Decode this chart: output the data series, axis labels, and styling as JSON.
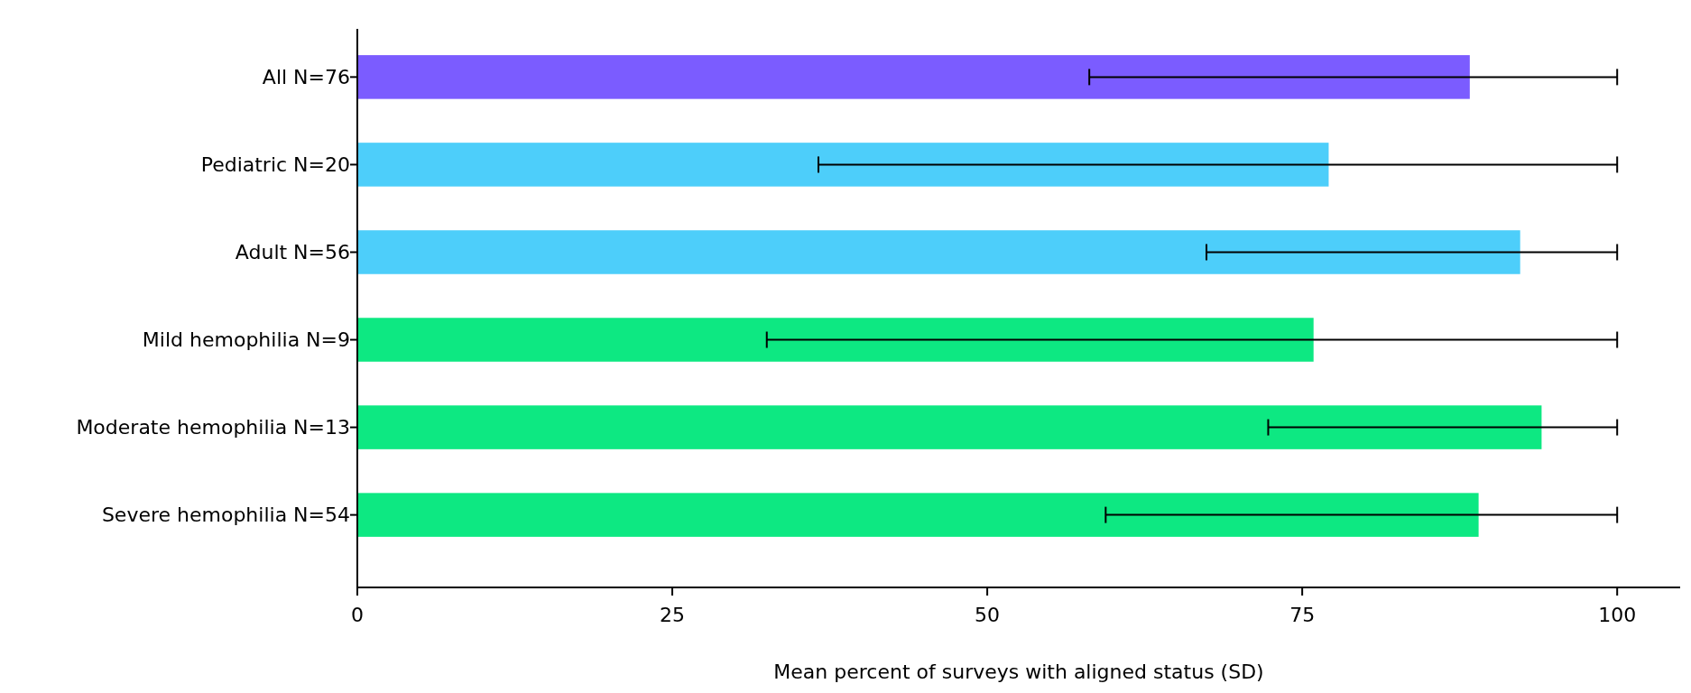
{
  "chart_data": {
    "type": "bar",
    "orientation": "horizontal",
    "xlabel": "Mean percent of surveys with aligned status (SD)",
    "categories": [
      "All N=76",
      "Pediatric N=20",
      "Adult N=56",
      "Mild hemophilia N=9",
      "Moderate hemophilia N=13",
      "Severe hemophilia N=54"
    ],
    "values": [
      88.3,
      77.1,
      92.3,
      75.9,
      94.0,
      89.0
    ],
    "colors": [
      "#7b5cff",
      "#4dcefa",
      "#4dcefa",
      "#0de882",
      "#0de882",
      "#0de882"
    ],
    "errors": [
      [
        58.1,
        100
      ],
      [
        36.6,
        100
      ],
      [
        67.4,
        100
      ],
      [
        32.5,
        100
      ],
      [
        72.3,
        100
      ],
      [
        59.4,
        100
      ]
    ],
    "xlim": [
      0,
      105
    ],
    "xticks": [
      0,
      25,
      50,
      75,
      100
    ],
    "grid": false
  }
}
